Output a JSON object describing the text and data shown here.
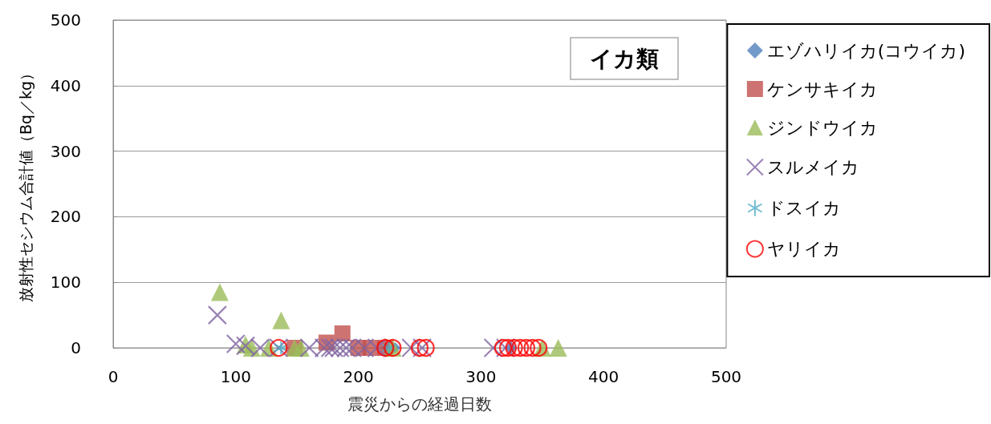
{
  "chart_data": {
    "type": "scatter",
    "title": "イカ類",
    "xlabel": "震災からの経過日数",
    "ylabel": "放射性セシウム合計値（Bq／kg）",
    "xlim": [
      0,
      500
    ],
    "xticks": [
      0,
      100,
      200,
      300,
      400,
      500
    ],
    "ylim": [
      0,
      500
    ],
    "yticks": [
      0,
      100,
      200,
      300,
      400,
      500
    ],
    "grid": "y",
    "legend": "right",
    "series": [
      {
        "name": "エゾハリイカ(コウイカ)",
        "color": "#4f81bd",
        "marker": "diamond",
        "x": [
          222,
          230,
          325
        ],
        "values": [
          0,
          0,
          0
        ]
      },
      {
        "name": "ケンサキイカ",
        "color": "#c0504d",
        "marker": "square",
        "x": [
          148,
          174,
          187,
          200,
          210,
          222
        ],
        "values": [
          0,
          8,
          22,
          0,
          0,
          0
        ]
      },
      {
        "name": "ジンドウイカ",
        "color": "#9bbb59",
        "marker": "triangle",
        "x": [
          87,
          108,
          113,
          127,
          137,
          148,
          153,
          228,
          350,
          363
        ],
        "values": [
          85,
          5,
          0,
          0,
          42,
          0,
          0,
          0,
          0,
          0
        ]
      },
      {
        "name": "スルメイカ",
        "color": "#8064a2",
        "marker": "cross",
        "x": [
          85,
          100,
          108,
          120,
          135,
          160,
          172,
          177,
          180,
          185,
          190,
          195,
          205,
          215,
          243,
          252,
          310,
          320
        ],
        "values": [
          50,
          6,
          3,
          0,
          0,
          0,
          0,
          0,
          0,
          0,
          0,
          0,
          0,
          0,
          0,
          0,
          0,
          0
        ]
      },
      {
        "name": "ドスイカ",
        "color": "#4bacc6",
        "marker": "cross",
        "x": [
          137,
          225
        ],
        "values": [
          0,
          0
        ]
      },
      {
        "name": "ヤリイカ",
        "color": "#ff0000",
        "marker": "circle",
        "x": [
          135,
          222,
          228,
          250,
          255,
          318,
          322,
          327,
          332,
          337,
          342,
          347
        ],
        "values": [
          0,
          0,
          0,
          0,
          0,
          0,
          0,
          0,
          0,
          0,
          0,
          0
        ]
      }
    ]
  }
}
